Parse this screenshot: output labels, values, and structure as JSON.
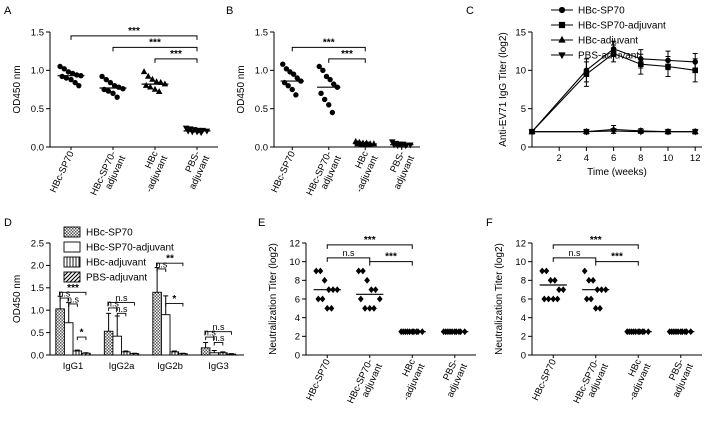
{
  "panels": {
    "A": {
      "letter": "A"
    },
    "B": {
      "letter": "B"
    },
    "C": {
      "letter": "C"
    },
    "D": {
      "letter": "D"
    },
    "E": {
      "letter": "E"
    },
    "F": {
      "letter": "F"
    }
  },
  "chart_data": [
    {
      "id": "A",
      "type": "scatter",
      "ylabel": "OD450 nm",
      "ylim": [
        0,
        1.5
      ],
      "yticks": [
        "0.0",
        "0.5",
        "1.0",
        "1.5"
      ],
      "categories": [
        "HBc-SP70",
        "HBc-SP70-adjuvant",
        "HBc-adjuvant",
        "PBS-adjuvant"
      ],
      "category_labels": [
        [
          "HBc-SP70"
        ],
        [
          "HBc-SP70-",
          "adjuvant"
        ],
        [
          "HBc",
          "-adjuvant"
        ],
        [
          "PBS-",
          "adjuvant"
        ]
      ],
      "markers": [
        "circle",
        "circle",
        "triangle",
        "triangle-down"
      ],
      "points": [
        [
          1.05,
          1.02,
          0.98,
          0.96,
          0.94,
          0.93,
          0.92,
          0.9,
          0.88,
          0.84,
          0.8
        ],
        [
          0.92,
          0.88,
          0.84,
          0.8,
          0.78,
          0.76,
          0.75,
          0.73,
          0.7,
          0.65
        ],
        [
          0.98,
          0.92,
          0.88,
          0.85,
          0.84,
          0.82,
          0.8,
          0.78,
          0.75,
          0.72
        ],
        [
          0.25,
          0.24,
          0.23,
          0.22,
          0.22,
          0.21,
          0.21,
          0.2,
          0.2,
          0.19
        ]
      ],
      "medians": [
        0.93,
        0.77,
        0.82,
        0.21
      ],
      "brackets": [
        {
          "from": 0,
          "to": 3,
          "y": 1.45,
          "label": "***"
        },
        {
          "from": 1,
          "to": 3,
          "y": 1.3,
          "label": "***"
        },
        {
          "from": 2,
          "to": 3,
          "y": 1.15,
          "label": "***"
        }
      ]
    },
    {
      "id": "B",
      "type": "scatter",
      "ylabel": "OD450 nm",
      "ylim": [
        0,
        1.5
      ],
      "yticks": [
        "0.0",
        "0.5",
        "1.0",
        "1.5"
      ],
      "categories": [
        "HBc-SP70",
        "HBc-SP70-adjuvant",
        "HBc-adjuvant",
        "PBS-adjuvant"
      ],
      "category_labels": [
        [
          "HBc-SP70"
        ],
        [
          "HBc-SP70-",
          "adjuvant"
        ],
        [
          "HBc",
          "-adjuvant"
        ],
        [
          "PBS-",
          "adjuvant"
        ]
      ],
      "markers": [
        "circle",
        "circle",
        "triangle",
        "triangle-down"
      ],
      "points": [
        [
          1.08,
          1.02,
          0.98,
          0.95,
          0.9,
          0.86,
          0.84,
          0.8,
          0.75,
          0.68
        ],
        [
          1.05,
          1.0,
          0.92,
          0.88,
          0.82,
          0.78,
          0.7,
          0.62,
          0.55,
          0.45
        ],
        [
          0.07,
          0.06,
          0.05,
          0.05,
          0.04,
          0.04,
          0.04,
          0.03,
          0.03,
          0.03
        ],
        [
          0.07,
          0.05,
          0.04,
          0.04,
          0.03,
          0.03,
          0.03,
          0.02,
          0.02,
          0.02
        ]
      ],
      "medians": [
        0.86,
        0.78,
        0.04,
        0.03
      ],
      "brackets": [
        {
          "from": 0,
          "to": 2,
          "y": 1.3,
          "label": "***"
        },
        {
          "from": 1,
          "to": 2,
          "y": 1.15,
          "label": "***"
        }
      ]
    },
    {
      "id": "C",
      "type": "line",
      "xlabel": "Time (weeks)",
      "ylabel": "Anti-EV71 IgG Titer (log2)",
      "xlim": [
        0,
        12.5
      ],
      "ylim": [
        0,
        15
      ],
      "xticks": [
        2,
        4,
        6,
        8,
        10,
        12
      ],
      "yticks": [
        0,
        5,
        10,
        15
      ],
      "x": [
        0,
        4,
        6,
        8,
        10,
        12
      ],
      "series": [
        {
          "name": "HBc-SP70",
          "marker": "circle",
          "values": [
            2,
            10.0,
            12.8,
            11.5,
            11.3,
            11.1
          ],
          "err": [
            0,
            1.5,
            1.0,
            1.2,
            1.2,
            1.1
          ]
        },
        {
          "name": "HBc-SP70-adjuvant",
          "marker": "square",
          "values": [
            2,
            9.5,
            12.2,
            10.8,
            10.5,
            10.0
          ],
          "err": [
            0,
            1.6,
            1.1,
            1.3,
            1.3,
            1.5
          ]
        },
        {
          "name": "HBc-adjuvant",
          "marker": "triangle",
          "values": [
            2,
            2.0,
            2.3,
            2.1,
            2.0,
            2.0
          ],
          "err": [
            0,
            0.3,
            0.5,
            0.3,
            0.3,
            0.3
          ]
        },
        {
          "name": "PBS-adjuvant",
          "marker": "triangle-down",
          "values": [
            2,
            2.0,
            2.1,
            2.0,
            2.0,
            2.0
          ],
          "err": [
            0,
            0.2,
            0.3,
            0.2,
            0.2,
            0.2
          ]
        }
      ]
    },
    {
      "id": "D",
      "type": "bar",
      "ylabel": "OD450 nm",
      "ylim": [
        0,
        2.5
      ],
      "yticks": [
        "0.0",
        "0.5",
        "1.0",
        "1.5",
        "2.0",
        "2.5"
      ],
      "categories": [
        "IgG1",
        "IgG2a",
        "IgG2b",
        "IgG3"
      ],
      "series": [
        {
          "name": "HBc-SP70",
          "pattern": "checker",
          "values": [
            1.03,
            0.53,
            1.4,
            0.16
          ],
          "err": [
            0.28,
            0.4,
            0.55,
            0.12
          ]
        },
        {
          "name": "HBc-SP70-adjuvant",
          "pattern": "white",
          "values": [
            0.72,
            0.42,
            0.9,
            0.05
          ],
          "err": [
            0.45,
            0.45,
            0.42,
            0.05
          ]
        },
        {
          "name": "HBc-adjuvant",
          "pattern": "vlines",
          "values": [
            0.09,
            0.07,
            0.07,
            0.05
          ],
          "err": [
            0.02,
            0.02,
            0.02,
            0.02
          ]
        },
        {
          "name": "PBS-adjuvant",
          "pattern": "diag",
          "values": [
            0.04,
            0.03,
            0.03,
            0.02
          ],
          "err": [
            0.01,
            0.01,
            0.01,
            0.01
          ]
        }
      ],
      "brackets": [
        {
          "cat": 0,
          "from": 0,
          "to": 3,
          "y": 1.4,
          "label": "***"
        },
        {
          "cat": 0,
          "from": 0,
          "to": 1,
          "y": 1.27,
          "label": "n.s"
        },
        {
          "cat": 0,
          "from": 1,
          "to": 2,
          "y": 1.14,
          "label": "n.s"
        },
        {
          "cat": 0,
          "from": 2,
          "to": 3,
          "y": 0.4,
          "label": "*"
        },
        {
          "cat": 1,
          "from": 0,
          "to": 3,
          "y": 1.17,
          "label": "n.s"
        },
        {
          "cat": 1,
          "from": 0,
          "to": 1,
          "y": 1.05,
          "label": "n.s"
        },
        {
          "cat": 1,
          "from": 1,
          "to": 2,
          "y": 0.93,
          "label": "n.s"
        },
        {
          "cat": 2,
          "from": 0,
          "to": 3,
          "y": 2.05,
          "label": "**"
        },
        {
          "cat": 2,
          "from": 0,
          "to": 1,
          "y": 1.92,
          "label": "n.s"
        },
        {
          "cat": 2,
          "from": 1,
          "to": 3,
          "y": 1.15,
          "label": "*"
        },
        {
          "cat": 3,
          "from": 0,
          "to": 3,
          "y": 0.52,
          "label": "n.s"
        },
        {
          "cat": 3,
          "from": 0,
          "to": 1,
          "y": 0.4,
          "label": "n.s"
        },
        {
          "cat": 3,
          "from": 1,
          "to": 2,
          "y": 0.28,
          "label": "n.s"
        }
      ]
    },
    {
      "id": "E",
      "type": "scatter",
      "ylabel": "Neutralization Titer (log2)",
      "ylim": [
        0,
        12
      ],
      "yticks": [
        "0",
        "2",
        "4",
        "6",
        "8",
        "10",
        "12"
      ],
      "categories": [
        "HBc-SP70",
        "HBc-SP70-adjuvant",
        "HBc-adjuvant",
        "PBS-adjuvant"
      ],
      "category_labels": [
        [
          "HBc-SP70"
        ],
        [
          "HBc-SP70-",
          "adjuvant"
        ],
        [
          "HBc",
          "-adjuvant"
        ],
        [
          "PBS-",
          "adjuvant"
        ]
      ],
      "markers": [
        "diamond",
        "diamond",
        "diamond",
        "diamond"
      ],
      "points": [
        [
          9,
          9,
          8,
          7,
          7,
          7,
          6,
          6,
          5,
          5
        ],
        [
          9,
          9,
          8,
          7,
          7,
          6,
          6,
          5,
          5,
          5
        ],
        [
          2.5,
          2.5,
          2.5,
          2.5,
          2.5,
          2.5,
          2.5,
          2.5,
          2.5,
          2.5
        ],
        [
          2.5,
          2.5,
          2.5,
          2.5,
          2.5,
          2.5,
          2.5,
          2.5,
          2.5,
          2.5
        ]
      ],
      "medians": [
        7.0,
        6.5,
        2.5,
        2.5
      ],
      "brackets": [
        {
          "from": 0,
          "to": 2,
          "y": 11.8,
          "label": "***"
        },
        {
          "from": 0,
          "to": 1,
          "y": 10.4,
          "label": "n.s"
        },
        {
          "from": 1,
          "to": 2,
          "y": 10.0,
          "label": "***"
        }
      ]
    },
    {
      "id": "F",
      "type": "scatter",
      "ylabel": "Neutralization Titer (log2)",
      "ylim": [
        0,
        12
      ],
      "yticks": [
        "0",
        "2",
        "4",
        "6",
        "8",
        "10",
        "12"
      ],
      "categories": [
        "HBc-SP70",
        "HBc-SP70-adjuvant",
        "HBc-adjuvant",
        "PBS-adjuvant"
      ],
      "category_labels": [
        [
          "HBc-SP70"
        ],
        [
          "HBc-SP70-",
          "adjuvant"
        ],
        [
          "HBc",
          "-adjuvant"
        ],
        [
          "PBS-",
          "adjuvant"
        ]
      ],
      "markers": [
        "diamond",
        "diamond",
        "diamond",
        "diamond"
      ],
      "points": [
        [
          9,
          9,
          8,
          8,
          7,
          7,
          6,
          6,
          6,
          6
        ],
        [
          9,
          8,
          8,
          7,
          7,
          7,
          6,
          6,
          5,
          5
        ],
        [
          2.5,
          2.5,
          2.5,
          2.5,
          2.5,
          2.5,
          2.5,
          2.5,
          2.5,
          2.5
        ],
        [
          2.5,
          2.5,
          2.5,
          2.5,
          2.5,
          2.5,
          2.5,
          2.5,
          2.5,
          2.5
        ]
      ],
      "medians": [
        7.5,
        7.0,
        2.5,
        2.5
      ],
      "brackets": [
        {
          "from": 0,
          "to": 2,
          "y": 11.8,
          "label": "***"
        },
        {
          "from": 0,
          "to": 1,
          "y": 10.4,
          "label": "n.s"
        },
        {
          "from": 1,
          "to": 2,
          "y": 10.0,
          "label": "***"
        }
      ]
    }
  ]
}
